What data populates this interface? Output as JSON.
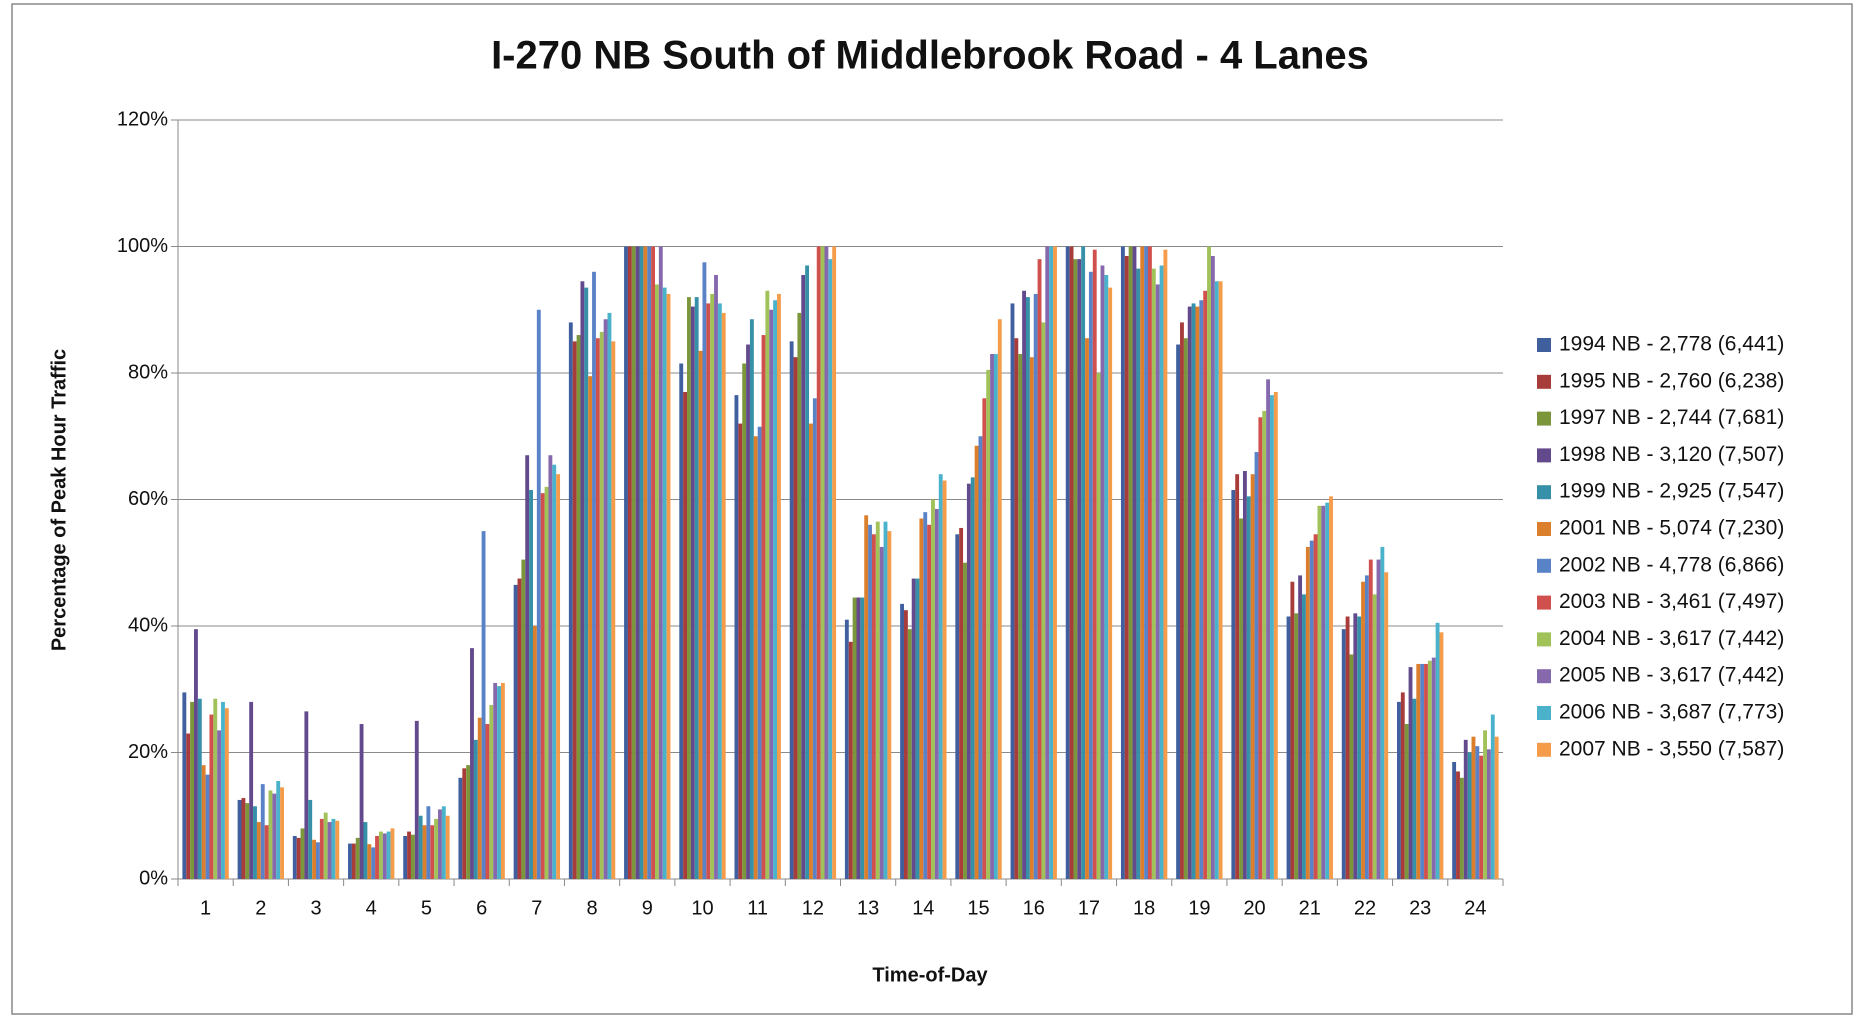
{
  "chart_data": {
    "type": "bar",
    "title": "I-270 NB South of Middlebrook Road - 4 Lanes",
    "x_label": "Time-of-Day",
    "y_label": "Percentage of Peak Hour Traffic",
    "categories": [
      1,
      2,
      3,
      4,
      5,
      6,
      7,
      8,
      9,
      10,
      11,
      12,
      13,
      14,
      15,
      16,
      17,
      18,
      19,
      20,
      21,
      22,
      23,
      24
    ],
    "ylim": [
      0,
      120
    ],
    "yticks": [
      {
        "value": 0,
        "label": "0%"
      },
      {
        "value": 20,
        "label": "20%"
      },
      {
        "value": 40,
        "label": "40%"
      },
      {
        "value": 60,
        "label": "60%"
      },
      {
        "value": 80,
        "label": "80%"
      },
      {
        "value": 100,
        "label": "100%"
      },
      {
        "value": 120,
        "label": "120%"
      }
    ],
    "grid": true,
    "legend": "right",
    "series": [
      {
        "name": "1994 NB - 2,778 (6,441)",
        "color": "#3f5f9f",
        "values": [
          29.5,
          12.5,
          6.8,
          5.6,
          6.8,
          16,
          46.5,
          88,
          100,
          81.5,
          76.5,
          85,
          41,
          43.5,
          54.5,
          91,
          100,
          100,
          84.5,
          61.5,
          41.5,
          39.5,
          28,
          18.5
        ]
      },
      {
        "name": "1995 NB - 2,760 (6,238)",
        "color": "#a83c3a",
        "values": [
          23,
          12.8,
          6.5,
          5.6,
          7.5,
          17.5,
          47.5,
          85,
          100,
          77,
          72,
          82.5,
          37.5,
          42.5,
          55.5,
          85.5,
          100,
          98.5,
          88,
          64,
          47,
          41.5,
          29.5,
          17
        ]
      },
      {
        "name": "1997 NB - 2,744 (7,681)",
        "color": "#7c963c",
        "values": [
          28,
          12,
          8,
          6.5,
          7,
          18,
          50.5,
          86,
          100,
          92,
          81.5,
          89.5,
          44.5,
          39.5,
          50,
          83,
          98,
          100,
          85.5,
          57,
          42,
          35.5,
          24.5,
          16
        ]
      },
      {
        "name": "1998 NB - 3,120 (7,507)",
        "color": "#634a8c",
        "values": [
          39.5,
          28,
          26.5,
          24.5,
          25,
          36.5,
          67,
          94.5,
          100,
          90.5,
          84.5,
          95.5,
          44.5,
          47.5,
          62.5,
          93,
          98,
          100,
          90.5,
          64.5,
          48,
          42,
          33.5,
          22
        ]
      },
      {
        "name": "1999 NB - 2,925 (7,547)",
        "color": "#3590a8",
        "values": [
          28.5,
          11.5,
          12.5,
          9,
          10,
          22,
          61.5,
          93.5,
          100,
          92,
          88.5,
          97,
          44.5,
          47.5,
          63.5,
          92,
          100,
          96.5,
          91,
          60.5,
          45,
          41.5,
          28.5,
          20
        ]
      },
      {
        "name": "2001 NB - 5,074 (7,230)",
        "color": "#dc7f2c",
        "values": [
          18,
          9,
          6.2,
          5.5,
          8.5,
          25.5,
          40,
          79.5,
          100,
          83.5,
          70,
          72,
          57.5,
          57,
          68.5,
          82.5,
          85.5,
          100,
          90.5,
          64,
          52.5,
          47,
          34,
          22.5
        ]
      },
      {
        "name": "2002 NB - 4,778 (6,866)",
        "color": "#5a82c6",
        "values": [
          16.5,
          15,
          5.8,
          5,
          11.5,
          55,
          90,
          96,
          100,
          97.5,
          71.5,
          76,
          56,
          58,
          70,
          92.5,
          96,
          100,
          91.5,
          67.5,
          53.5,
          48,
          34,
          21
        ]
      },
      {
        "name": "2003 NB - 3,461 (7,497)",
        "color": "#d0504d",
        "values": [
          26,
          8.5,
          9.5,
          6.8,
          8.5,
          24.5,
          61,
          85.5,
          100,
          91,
          86,
          100,
          54.5,
          56,
          76,
          98,
          99.5,
          100,
          93,
          73,
          54.5,
          50.5,
          34,
          19.5
        ]
      },
      {
        "name": "2004 NB - 3,617 (7,442)",
        "color": "#a1c159",
        "values": [
          28.5,
          14,
          10.5,
          7.5,
          9.5,
          27.5,
          62,
          86.5,
          94,
          92.5,
          93,
          100,
          56.5,
          60,
          80.5,
          88,
          80,
          96.5,
          100,
          74,
          59,
          45,
          34.5,
          23.5
        ]
      },
      {
        "name": "2005 NB - 3,617 (7,442)",
        "color": "#8669ad",
        "values": [
          23.5,
          13.5,
          9,
          7.2,
          11,
          31,
          67,
          88.5,
          100,
          95.5,
          90,
          100,
          52.5,
          58.5,
          83,
          100,
          97,
          94,
          98.5,
          79,
          59,
          50.5,
          35,
          20.5
        ]
      },
      {
        "name": "2006 NB - 3,687 (7,773)",
        "color": "#4bb2cc",
        "values": [
          28,
          15.5,
          9.5,
          7.5,
          11.5,
          30.5,
          65.5,
          89.5,
          93.5,
          91,
          91.5,
          98,
          56.5,
          64,
          83,
          100,
          95.5,
          97,
          94.5,
          76.5,
          59.5,
          52.5,
          40.5,
          26
        ]
      },
      {
        "name": "2007 NB - 3,550 (7,587)",
        "color": "#f59c4a",
        "values": [
          27,
          14.5,
          9.2,
          8,
          10,
          31,
          64,
          85,
          92.5,
          89.5,
          92.5,
          100,
          55,
          63,
          88.5,
          100,
          93.5,
          99.5,
          94.5,
          77,
          60.5,
          48.5,
          39,
          22.5
        ]
      }
    ]
  }
}
